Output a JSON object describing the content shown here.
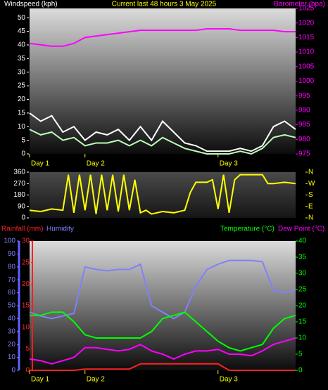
{
  "chart_data": [
    {
      "type": "line",
      "title": "Current last 48 hours 3 May 2025",
      "y_label": "Windspeed (kph)",
      "y2_label": "Barometer (hpa)",
      "x": [
        0,
        2,
        4,
        6,
        8,
        10,
        12,
        14,
        16,
        18,
        20,
        22,
        24,
        26,
        28,
        30,
        32,
        34,
        36,
        38,
        40,
        42,
        44,
        46,
        48
      ],
      "xlim": [
        0,
        48
      ],
      "xticks": [
        {
          "value": 0,
          "label": "Day 1"
        },
        {
          "value": 10,
          "label": "Day 2"
        },
        {
          "value": 34,
          "label": "Day 3"
        }
      ],
      "ylim": [
        0,
        53.4
      ],
      "yticks": [
        0,
        5,
        10,
        15,
        20,
        25,
        30,
        35,
        40,
        45,
        50
      ],
      "y2lim": [
        975,
        1025
      ],
      "y2ticks": [
        975,
        980,
        985,
        990,
        995,
        1000,
        1005,
        1010,
        1015,
        1020,
        1025
      ],
      "series": [
        {
          "color": "#ffffff",
          "values": [
            15,
            12,
            14,
            8,
            10,
            5,
            8,
            7,
            9,
            5,
            10,
            5,
            12,
            8,
            4,
            3,
            1,
            1,
            1,
            2,
            1,
            3,
            10,
            12,
            9
          ]
        },
        {
          "color": "#b8ffb8",
          "values": [
            9,
            7,
            8,
            5,
            6,
            3,
            4,
            4,
            5,
            3,
            5,
            3,
            6,
            4,
            2,
            1,
            0,
            0,
            0,
            1,
            0,
            2,
            6,
            7,
            6
          ]
        },
        {
          "color": "#ff00ff",
          "axis": "y2",
          "values": [
            1013,
            1012.5,
            1012,
            1012,
            1013,
            1015,
            1015.5,
            1016,
            1016.5,
            1017,
            1017.5,
            1017.5,
            1017.5,
            1017.5,
            1017.5,
            1017.5,
            1018,
            1018,
            1018,
            1017.5,
            1017.5,
            1017.5,
            1017.5,
            1017,
            1017
          ]
        }
      ]
    },
    {
      "type": "line",
      "x": [
        0,
        2,
        4,
        6,
        7,
        8,
        9,
        10,
        11,
        12,
        13,
        14,
        15,
        16,
        17,
        18,
        19,
        20,
        21,
        22,
        24,
        26,
        28,
        29,
        30,
        32,
        33,
        34,
        35,
        36,
        37,
        38,
        40,
        42,
        43,
        44,
        46,
        48
      ],
      "xlim": [
        0,
        48
      ],
      "ylim": [
        0,
        360
      ],
      "yticks": [
        0,
        90,
        180,
        270,
        360
      ],
      "y2lim": [
        0,
        360
      ],
      "y2ticks": [
        {
          "value": 0,
          "label": "N"
        },
        {
          "value": 90,
          "label": "E"
        },
        {
          "value": 180,
          "label": "S"
        },
        {
          "value": 270,
          "label": "W"
        },
        {
          "value": 360,
          "label": "N"
        }
      ],
      "series": [
        {
          "color": "#ffff00",
          "values": [
            60,
            50,
            70,
            60,
            340,
            40,
            340,
            60,
            340,
            30,
            340,
            60,
            340,
            50,
            340,
            60,
            300,
            40,
            60,
            30,
            50,
            40,
            60,
            200,
            280,
            280,
            300,
            70,
            340,
            40,
            300,
            340,
            340,
            340,
            270,
            270,
            280,
            270
          ]
        }
      ]
    },
    {
      "type": "line",
      "x": [
        0,
        2,
        4,
        6,
        8,
        10,
        12,
        14,
        16,
        18,
        20,
        22,
        24,
        26,
        28,
        30,
        32,
        34,
        36,
        38,
        40,
        42,
        44,
        46,
        48
      ],
      "xlim": [
        0,
        48
      ],
      "xticks": [
        {
          "value": 0,
          "label": "Day 1"
        },
        {
          "value": 10,
          "label": "Day 2"
        },
        {
          "value": 34,
          "label": "Day 3"
        }
      ],
      "ylim": [
        0,
        100
      ],
      "yticks": [
        0,
        10,
        20,
        30,
        40,
        50,
        60,
        70,
        80,
        90,
        100
      ],
      "y2lim": [
        0,
        40
      ],
      "y2ticks": [
        0,
        5,
        10,
        15,
        20,
        25,
        30,
        35,
        40
      ],
      "y3lim": [
        0,
        30
      ],
      "y3ticks": [
        0,
        5,
        10,
        15,
        20,
        25,
        30
      ],
      "series": [
        {
          "name": "Rainfall (mm)",
          "color": "#ff2020",
          "axis": "y3",
          "values": [
            0,
            0,
            0,
            0,
            0,
            0.3,
            0.3,
            0.3,
            0.3,
            0.3,
            1.5,
            1.5,
            1.5,
            1.5,
            1.5,
            1.5,
            1.5,
            1.5,
            0,
            0,
            0,
            0,
            0,
            0,
            0
          ]
        },
        {
          "name": "Humidity",
          "color": "#8080ff",
          "values": [
            45,
            42,
            40,
            42,
            44,
            80,
            78,
            77,
            78,
            78,
            82,
            50,
            45,
            40,
            45,
            65,
            78,
            82,
            85,
            85,
            85,
            84,
            62,
            60,
            62
          ]
        },
        {
          "name": "Temperature (°C)",
          "color": "#00ff00",
          "axis": "y2",
          "values": [
            17,
            17,
            18,
            18,
            15,
            11,
            10,
            10,
            10,
            10,
            10,
            12,
            16,
            17,
            18,
            15,
            12,
            9,
            7,
            6,
            7,
            8,
            13,
            16,
            17
          ]
        },
        {
          "name": "Dew Point (°C)",
          "color": "#ff00ff",
          "axis": "y2",
          "values": [
            3.5,
            3,
            2,
            3,
            4,
            7,
            7,
            6.5,
            6,
            6.5,
            8,
            6,
            5,
            3.5,
            5,
            6,
            6,
            6.5,
            5,
            5,
            4.5,
            6,
            8,
            9,
            10
          ]
        }
      ]
    }
  ]
}
